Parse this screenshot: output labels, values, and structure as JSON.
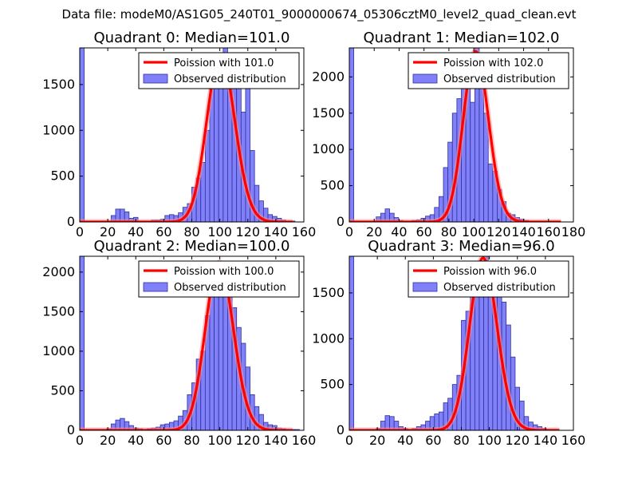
{
  "figure_title": "Data file: modeM0/AS1G05_240T01_9000000674_05306cztM0_level2_quad_clean.evt",
  "colors": {
    "bar_fill": "#8080f8",
    "bar_edge": "#3030a0",
    "curve": "#ff0000",
    "curve_glow": "#ff9090",
    "axis": "#000000"
  },
  "chart_data": [
    {
      "type": "bar",
      "title": "Quadrant 0: Median=101.0",
      "xlabel": "",
      "ylabel": "",
      "xlim": [
        0,
        160
      ],
      "ylim": [
        0,
        1900
      ],
      "xticks": [
        0,
        20,
        40,
        60,
        80,
        100,
        120,
        140,
        160
      ],
      "yticks": [
        0,
        500,
        1000,
        1500
      ],
      "bin_width": 3.2,
      "legend": {
        "placement": "top-right",
        "entries": [
          "Poission with 101.0",
          "Observed distribution"
        ]
      },
      "series": [
        {
          "name": "Observed distribution",
          "kind": "histogram",
          "bins": [
            0,
            3.2,
            6.4,
            9.6,
            12.8,
            16,
            19.2,
            22.4,
            25.6,
            28.8,
            32,
            35.2,
            38.4,
            41.6,
            44.8,
            48,
            51.2,
            54.4,
            57.6,
            60.8,
            64,
            67.2,
            70.4,
            73.6,
            76.8,
            80,
            83.2,
            86.4,
            89.6,
            92.8,
            96,
            99.2,
            102.4,
            105.6,
            108.8,
            112,
            115.2,
            118.4,
            121.6,
            124.8,
            128,
            131.2,
            134.4,
            137.6,
            140.8,
            144,
            147.2,
            150.4
          ],
          "values": [
            1900,
            0,
            0,
            0,
            0,
            0,
            0,
            70,
            140,
            140,
            110,
            40,
            50,
            10,
            10,
            10,
            20,
            20,
            30,
            70,
            80,
            70,
            100,
            160,
            200,
            380,
            480,
            650,
            1000,
            1500,
            1620,
            1780,
            1900,
            1780,
            1600,
            1500,
            1200,
            1500,
            780,
            400,
            230,
            150,
            80,
            60,
            40,
            20,
            10,
            10
          ]
        },
        {
          "name": "Poission with 101.0",
          "kind": "poisson",
          "mu": 101.0,
          "peak": 1820,
          "x_start": 0,
          "x_end": 152
        }
      ]
    },
    {
      "type": "bar",
      "title": "Quadrant 1: Median=102.0",
      "xlabel": "",
      "ylabel": "",
      "xlim": [
        0,
        180
      ],
      "ylim": [
        0,
        2400
      ],
      "xticks": [
        0,
        20,
        40,
        60,
        80,
        100,
        120,
        140,
        160,
        180
      ],
      "yticks": [
        0,
        500,
        1000,
        1500,
        2000
      ],
      "bin_width": 3.6,
      "legend": {
        "placement": "top-right",
        "entries": [
          "Poission with 102.0",
          "Observed distribution"
        ]
      },
      "series": [
        {
          "name": "Observed distribution",
          "kind": "histogram",
          "bins": [
            0,
            3.6,
            7.2,
            10.8,
            14.4,
            18,
            21.6,
            25.2,
            28.8,
            32.4,
            36,
            39.6,
            43.2,
            46.8,
            50.4,
            54,
            57.6,
            61.2,
            64.8,
            68.4,
            72,
            75.6,
            79.2,
            82.8,
            86.4,
            90,
            93.6,
            97.2,
            100.8,
            104.4,
            108,
            111.6,
            115.2,
            118.8,
            122.4,
            126,
            129.6,
            133.2,
            136.8,
            140.4,
            144,
            147.6
          ],
          "values": [
            2400,
            0,
            0,
            0,
            0,
            10,
            70,
            120,
            180,
            120,
            60,
            20,
            10,
            10,
            20,
            30,
            50,
            80,
            100,
            200,
            350,
            750,
            1100,
            1500,
            1700,
            1900,
            2150,
            1650,
            2400,
            1900,
            1500,
            800,
            700,
            450,
            280,
            120,
            100,
            60,
            40,
            20,
            10,
            10
          ]
        },
        {
          "name": "Poission with 102.0",
          "kind": "poisson",
          "mu": 102.0,
          "peak": 2350,
          "x_start": 0,
          "x_end": 170
        }
      ]
    },
    {
      "type": "bar",
      "title": "Quadrant 2: Median=100.0",
      "xlabel": "",
      "ylabel": "",
      "xlim": [
        0,
        160
      ],
      "ylim": [
        0,
        2200
      ],
      "xticks": [
        0,
        20,
        40,
        60,
        80,
        100,
        120,
        140,
        160
      ],
      "yticks": [
        0,
        500,
        1000,
        1500,
        2000
      ],
      "bin_width": 3.2,
      "legend": {
        "placement": "top-right",
        "entries": [
          "Poission with 100.0",
          "Observed distribution"
        ]
      },
      "series": [
        {
          "name": "Observed distribution",
          "kind": "histogram",
          "bins": [
            0,
            3.2,
            6.4,
            9.6,
            12.8,
            16,
            19.2,
            22.4,
            25.6,
            28.8,
            32,
            35.2,
            38.4,
            41.6,
            44.8,
            48,
            51.2,
            54.4,
            57.6,
            60.8,
            64,
            67.2,
            70.4,
            73.6,
            76.8,
            80,
            83.2,
            86.4,
            89.6,
            92.8,
            96,
            99.2,
            102.4,
            105.6,
            108.8,
            112,
            115.2,
            118.4,
            121.6,
            124.8,
            128,
            131.2,
            134.4,
            137.6,
            140.8,
            144,
            147.2,
            150.4,
            153.6,
            156.8
          ],
          "values": [
            2200,
            0,
            0,
            0,
            0,
            0,
            20,
            80,
            130,
            150,
            110,
            60,
            30,
            20,
            10,
            20,
            30,
            40,
            70,
            80,
            100,
            120,
            180,
            250,
            450,
            600,
            900,
            1000,
            1450,
            1800,
            2000,
            2020,
            2100,
            1950,
            1550,
            1300,
            1100,
            800,
            450,
            300,
            200,
            100,
            70,
            60,
            30,
            20,
            10,
            10,
            10,
            0
          ]
        },
        {
          "name": "Poission with 100.0",
          "kind": "poisson",
          "mu": 100.0,
          "peak": 2120,
          "x_start": 0,
          "x_end": 152
        }
      ]
    },
    {
      "type": "bar",
      "title": "Quadrant 3: Median=96.0",
      "xlabel": "",
      "ylabel": "",
      "xlim": [
        0,
        160
      ],
      "ylim": [
        0,
        1900
      ],
      "xticks": [
        0,
        20,
        40,
        60,
        80,
        100,
        120,
        140,
        160
      ],
      "yticks": [
        0,
        500,
        1000,
        1500
      ],
      "bin_width": 3.2,
      "legend": {
        "placement": "top-right",
        "entries": [
          "Poission with 96.0",
          "Observed distribution"
        ]
      },
      "series": [
        {
          "name": "Observed distribution",
          "kind": "histogram",
          "bins": [
            0,
            3.2,
            6.4,
            9.6,
            12.8,
            16,
            19.2,
            22.4,
            25.6,
            28.8,
            32,
            35.2,
            38.4,
            41.6,
            44.8,
            48,
            51.2,
            54.4,
            57.6,
            60.8,
            64,
            67.2,
            70.4,
            73.6,
            76.8,
            80,
            83.2,
            86.4,
            89.6,
            92.8,
            96,
            99.2,
            102.4,
            105.6,
            108.8,
            112,
            115.2,
            118.4,
            121.6,
            124.8,
            128,
            131.2,
            134.4,
            137.6,
            140.8,
            144,
            147.2
          ],
          "values": [
            1900,
            0,
            0,
            0,
            0,
            0,
            20,
            100,
            160,
            150,
            100,
            40,
            20,
            10,
            20,
            40,
            60,
            100,
            150,
            180,
            200,
            300,
            350,
            500,
            600,
            1200,
            1300,
            1600,
            1750,
            1680,
            1900,
            1800,
            1550,
            1600,
            1400,
            1150,
            800,
            470,
            320,
            150,
            90,
            60,
            40,
            20,
            10,
            10,
            0
          ]
        },
        {
          "name": "Poission with 96.0",
          "kind": "poisson",
          "mu": 96.0,
          "peak": 1880,
          "x_start": 0,
          "x_end": 150
        }
      ]
    }
  ]
}
